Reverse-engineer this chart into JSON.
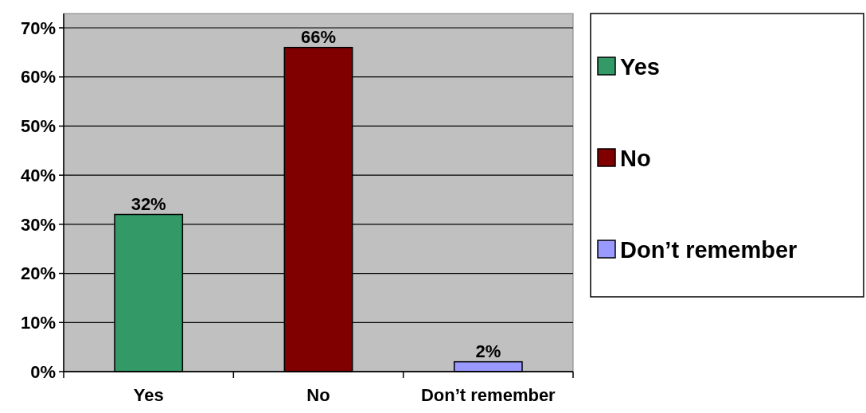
{
  "chart_data": {
    "type": "bar",
    "categories": [
      "Yes",
      "No",
      "Don’t remember"
    ],
    "series": [
      {
        "name": "Yes",
        "color": "#339966",
        "values": [
          32,
          null,
          null
        ],
        "value_labels": [
          "32%",
          null,
          null
        ]
      },
      {
        "name": "No",
        "color": "#800000",
        "values": [
          null,
          66,
          null
        ],
        "value_labels": [
          null,
          "66%",
          null
        ]
      },
      {
        "name": "Don’t remember",
        "color": "#9999ff",
        "values": [
          null,
          null,
          2
        ],
        "value_labels": [
          null,
          null,
          "2%"
        ]
      }
    ],
    "ylim": [
      0,
      70
    ],
    "yticks": [
      {
        "value": 0,
        "label": "0%"
      },
      {
        "value": 10,
        "label": "10%"
      },
      {
        "value": 20,
        "label": "20%"
      },
      {
        "value": 30,
        "label": "30%"
      },
      {
        "value": 40,
        "label": "40%"
      },
      {
        "value": 50,
        "label": "50%"
      },
      {
        "value": 60,
        "label": "60%"
      },
      {
        "value": 70,
        "label": "70%"
      }
    ],
    "grid": "y",
    "legend": "right"
  }
}
